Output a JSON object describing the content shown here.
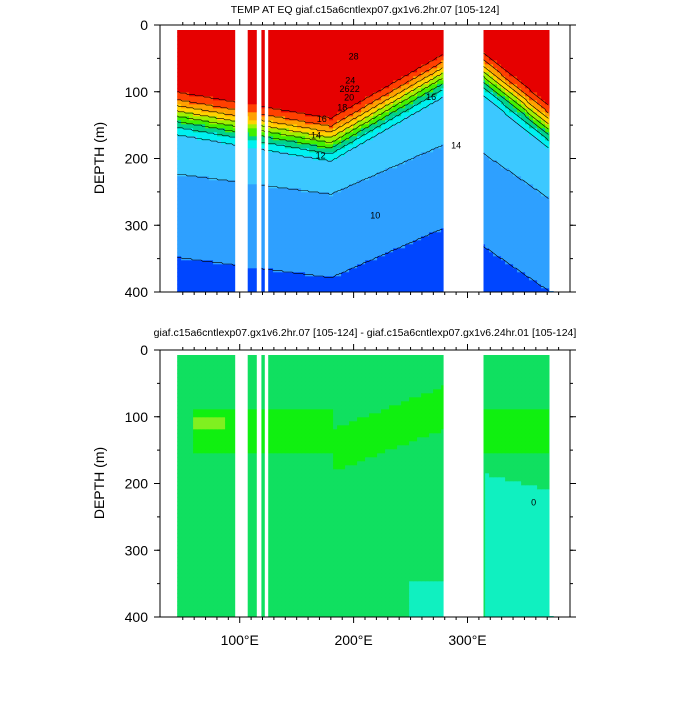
{
  "chart_data": [
    {
      "type": "heatmap",
      "title": "TEMP AT EQ giaf.c15a6cntlexp07.gx1v6.2hr.07 [105-124]",
      "xlabel": "",
      "ylabel": "DEPTH (m)",
      "xlim": [
        30,
        390
      ],
      "ylim": [
        400,
        0
      ],
      "x_ticks": [
        100,
        200,
        300
      ],
      "x_tick_labels": [
        "100°E",
        "200°E",
        "300°E"
      ],
      "y_ticks": [
        0,
        100,
        200,
        300,
        400
      ],
      "y_tick_labels": [
        "0",
        "100",
        "200",
        "300",
        "400"
      ],
      "land_gaps_lon": [
        [
          96,
          107
        ],
        [
          115,
          119
        ],
        [
          122,
          122
        ],
        [
          279,
          314
        ]
      ],
      "contour_levels": [
        10,
        12,
        14,
        16,
        18,
        20,
        22,
        24,
        26,
        28
      ],
      "contour_labels": [
        "28",
        "26",
        "24",
        "22",
        "20",
        "18",
        "16",
        "16",
        "14",
        "14",
        "12",
        "10"
      ],
      "max_depth_m": 400
    },
    {
      "type": "heatmap",
      "title": "giaf.c15a6cntlexp07.gx1v6.2hr.07 [105-124] - giaf.c15a6cntlexp07.gx1v6.24hr.01 [105-124]",
      "xlabel": "",
      "ylabel": "DEPTH (m)",
      "xlim": [
        30,
        390
      ],
      "ylim": [
        400,
        0
      ],
      "x_ticks": [
        100,
        200,
        300
      ],
      "x_tick_labels": [
        "100°E",
        "200°E",
        "300°E"
      ],
      "y_ticks": [
        0,
        100,
        200,
        300,
        400
      ],
      "y_tick_labels": [
        "0",
        "100",
        "200",
        "300",
        "400"
      ],
      "contour_labels": [
        "0"
      ],
      "difference_levels": [
        -0.2,
        0,
        0.2,
        0.4
      ]
    }
  ],
  "colors": {
    "temp_palette": [
      "#0046ff",
      "#1e78ff",
      "#2ea0ff",
      "#3cc8ff",
      "#40e0ff",
      "#00f0f0",
      "#00d28c",
      "#00e040",
      "#40f000",
      "#a0f000",
      "#e6f000",
      "#ffd200",
      "#ffa000",
      "#ff7800",
      "#ff4000",
      "#e60000"
    ],
    "diff_low": "#10f0c0",
    "diff_mid": "#10e060",
    "diff_high": "#10f010",
    "diff_peak": "#80f020",
    "land": "#ffffff"
  }
}
